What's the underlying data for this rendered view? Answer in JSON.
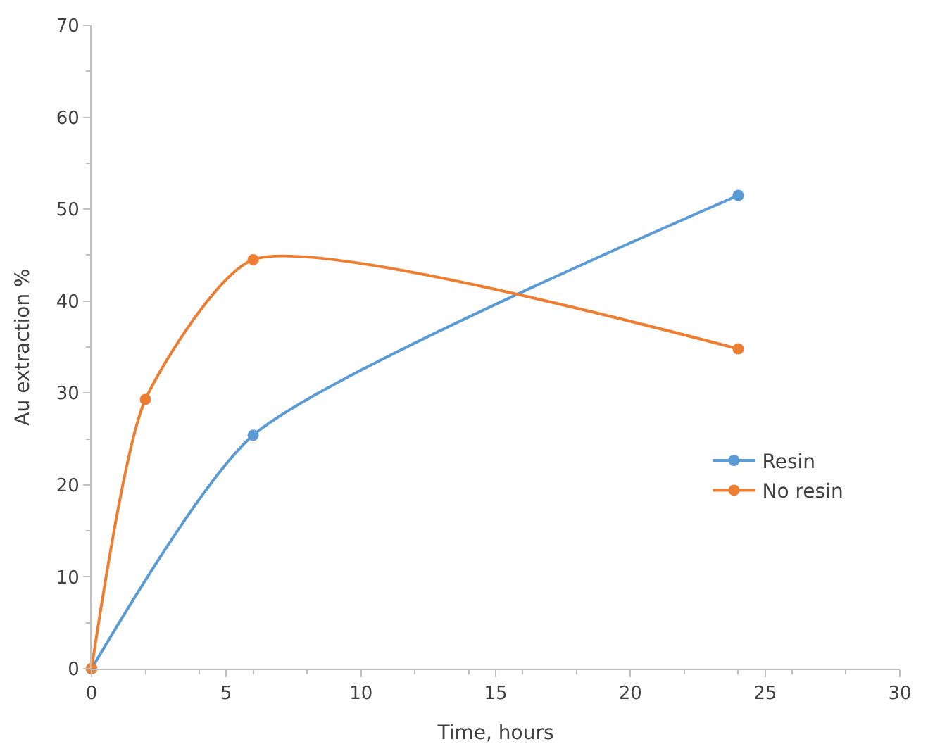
{
  "chart_data": {
    "type": "line",
    "xlabel": "Time, hours",
    "ylabel": "Au extraction %",
    "series": [
      {
        "name": "Resin",
        "color": "#5b9bd5",
        "x": [
          0,
          6,
          24
        ],
        "values": [
          0,
          25.4,
          51.5
        ]
      },
      {
        "name": "No resin",
        "color": "#ed7d31",
        "x": [
          0,
          2,
          6,
          24
        ],
        "values": [
          0,
          29.3,
          44.5,
          34.8
        ]
      }
    ],
    "xlim": [
      0,
      30
    ],
    "xticks": [
      0,
      5,
      10,
      15,
      20,
      25,
      30
    ],
    "ylim": [
      0,
      70
    ],
    "yticks": [
      0,
      10,
      20,
      30,
      40,
      50,
      60,
      70
    ],
    "legend": "right",
    "marker": "circle",
    "line_style": "solid"
  }
}
